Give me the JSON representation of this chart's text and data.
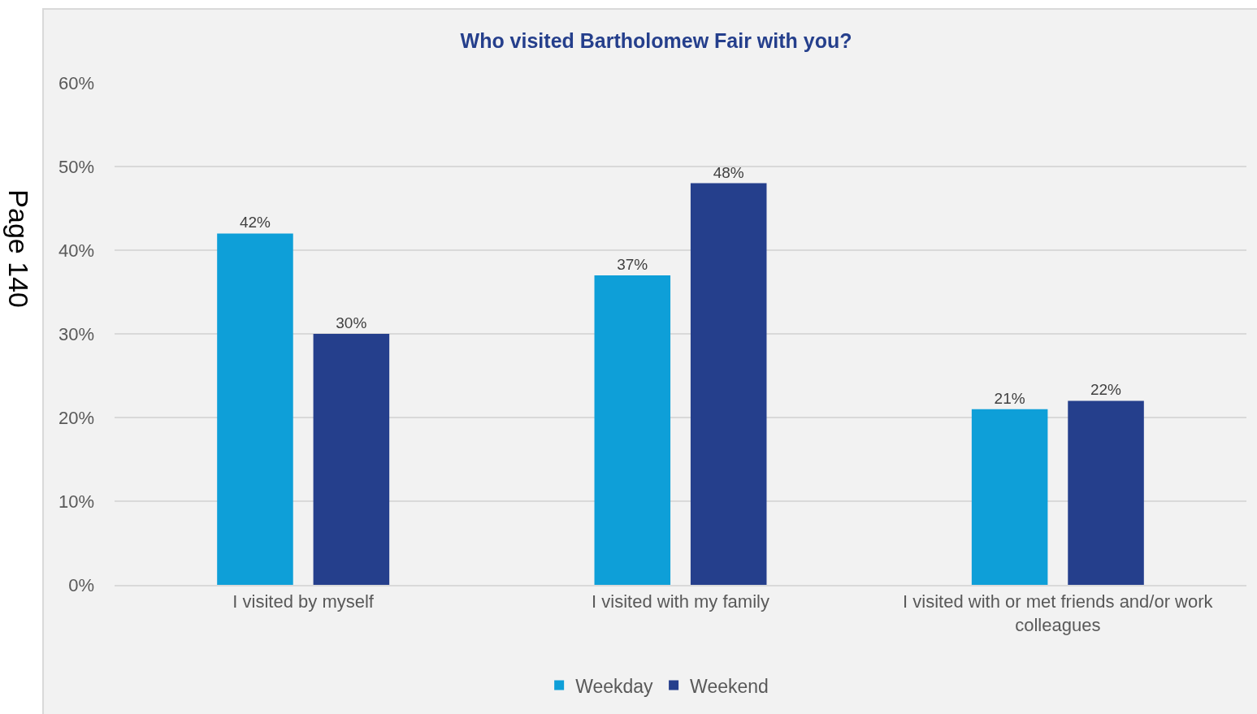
{
  "chart_data": {
    "type": "bar",
    "title": "Who visited Bartholomew Fair with you?",
    "categories": [
      "I visited by myself",
      "I visited with my family",
      "I visited with or met friends and/or work colleagues"
    ],
    "series": [
      {
        "name": "Weekday",
        "color": "#0e9fd8",
        "values": [
          42,
          37,
          21
        ],
        "value_labels": [
          "42%",
          "37%",
          "21%"
        ]
      },
      {
        "name": "Weekend",
        "color": "#253f8c",
        "values": [
          30,
          48,
          22
        ],
        "value_labels": [
          "30%",
          "48%",
          "22%"
        ]
      }
    ],
    "ylim": [
      0,
      60
    ],
    "yticks": [
      {
        "value": 0,
        "label": "0%"
      },
      {
        "value": 10,
        "label": "10%"
      },
      {
        "value": 20,
        "label": "20%"
      },
      {
        "value": 30,
        "label": "30%"
      },
      {
        "value": 40,
        "label": "40%"
      },
      {
        "value": 50,
        "label": "50%"
      },
      {
        "value": 60,
        "label": "60%"
      }
    ],
    "grid": "y",
    "legend": "bottom",
    "annotations": [
      "Page 140"
    ]
  }
}
